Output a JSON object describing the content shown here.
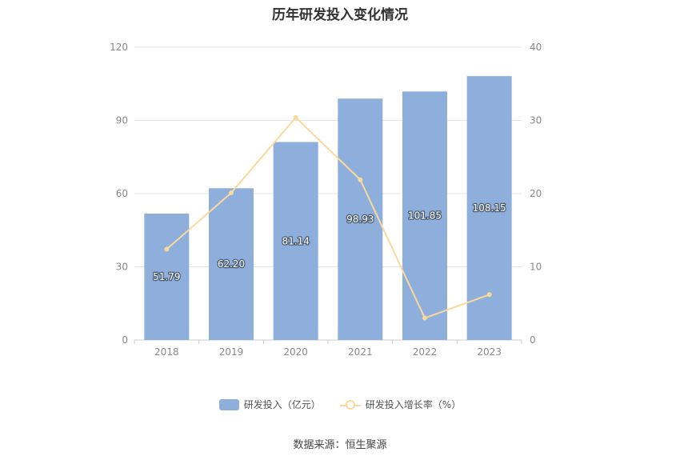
{
  "colors": {
    "bar": "#8eaedb",
    "line": "#fbd89b",
    "grid": "#e6e6e6",
    "axis_text": "#888888",
    "bar_label": "#ffffff"
  },
  "chart_data": {
    "type": "bar",
    "title": "历年研发投入变化情况",
    "categories": [
      "2018",
      "2019",
      "2020",
      "2021",
      "2022",
      "2023"
    ],
    "series": [
      {
        "name": "研发投入（亿元）",
        "type": "bar",
        "axis": "left",
        "values": [
          51.79,
          62.2,
          81.14,
          98.93,
          101.85,
          108.15
        ],
        "labels": [
          "51.79",
          "62.20",
          "81.14",
          "98.93",
          "101.85",
          "108.15"
        ]
      },
      {
        "name": "研发投入增长率（%）",
        "type": "line",
        "axis": "right",
        "values": [
          12.4,
          20.1,
          30.4,
          21.9,
          3.0,
          6.2
        ]
      }
    ],
    "y_left": {
      "ylim": [
        0,
        120
      ],
      "ticks": [
        "0",
        "30",
        "60",
        "90",
        "120"
      ]
    },
    "y_right": {
      "ylim": [
        0,
        40
      ],
      "ticks": [
        "0",
        "10",
        "20",
        "30",
        "40"
      ]
    },
    "grid": true,
    "legend_position": "bottom"
  },
  "legend": {
    "bar_label": "研发投入（亿元）",
    "line_label": "研发投入增长率（%）"
  },
  "source": "数据来源：恒生聚源"
}
